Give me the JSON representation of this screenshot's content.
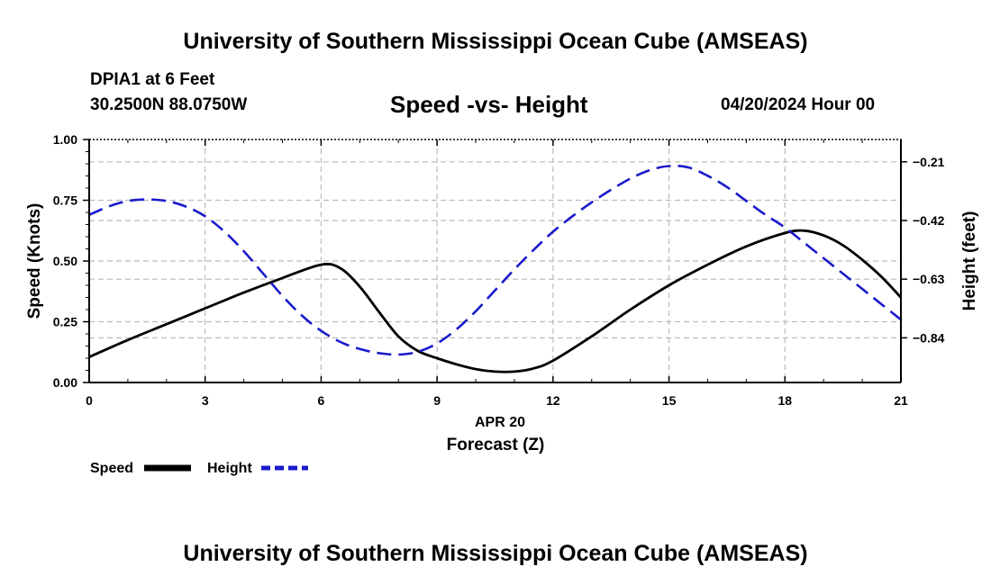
{
  "header": {
    "main_title": "University of Southern Mississippi Ocean Cube (AMSEAS)",
    "station": "DPIA1 at 6 Feet",
    "coords": "30.2500N  88.0750W",
    "chart_title": "Speed -vs- Height",
    "date": "04/20/2024 Hour 00"
  },
  "footer": {
    "title": "University of Southern Mississippi Ocean Cube (AMSEAS)"
  },
  "chart_data": {
    "type": "line",
    "title": "Speed -vs- Height",
    "xlabel_date": "APR 20",
    "xlabel": "Forecast (Z)",
    "ylabel": "Speed (Knots)",
    "y2label": "Height (feet)",
    "xlim": [
      0,
      21
    ],
    "ylim": [
      0,
      1
    ],
    "y2lim": [
      -1.0,
      -0.13
    ],
    "x_ticks": [
      0,
      3,
      6,
      9,
      12,
      15,
      18,
      21
    ],
    "x_tick_labels": [
      "0",
      "3",
      "6",
      "9",
      "12",
      "15",
      "18",
      "21"
    ],
    "y_ticks": [
      0,
      0.25,
      0.5,
      0.75,
      1.0
    ],
    "y_tick_labels": [
      "0.00",
      "0.25",
      "0.50",
      "0.75",
      "1.00"
    ],
    "y2_ticks": [
      -0.21,
      -0.42,
      -0.63,
      -0.84
    ],
    "y2_tick_labels": [
      "−0.21",
      "−0.42",
      "−0.63",
      "−0.84"
    ],
    "grid": true,
    "legend": [
      {
        "name": "Speed",
        "color": "#000000",
        "style": "solid"
      },
      {
        "name": "Height",
        "color": "#1a1acc",
        "style": "dashed"
      }
    ],
    "series": [
      {
        "name": "Speed",
        "axis": "left",
        "color": "#000000",
        "style": "solid",
        "x": [
          0,
          1,
          2,
          3,
          4,
          5,
          6,
          6.5,
          7,
          7.5,
          8,
          8.5,
          9,
          9.5,
          10,
          10.5,
          11,
          11.5,
          12,
          13,
          14,
          15,
          16,
          17,
          18,
          18.5,
          19,
          19.5,
          20,
          20.5,
          21
        ],
        "values": [
          0.105,
          0.175,
          0.24,
          0.305,
          0.37,
          0.43,
          0.485,
          0.47,
          0.395,
          0.29,
          0.19,
          0.13,
          0.1,
          0.075,
          0.055,
          0.045,
          0.045,
          0.058,
          0.09,
          0.19,
          0.3,
          0.4,
          0.485,
          0.56,
          0.615,
          0.625,
          0.605,
          0.565,
          0.505,
          0.435,
          0.35
        ]
      },
      {
        "name": "Height",
        "axis": "right",
        "color": "#1a1acc",
        "style": "dashed",
        "x": [
          0,
          0.5,
          1,
          1.5,
          2,
          2.5,
          3,
          3.5,
          4,
          4.5,
          5,
          5.5,
          6,
          6.5,
          7,
          7.5,
          8,
          8.5,
          9,
          9.5,
          10,
          10.5,
          11,
          11.5,
          12,
          12.5,
          13,
          13.5,
          14,
          14.5,
          15,
          15.5,
          16,
          16.5,
          17,
          17.5,
          18,
          18.5,
          19,
          19.5,
          20,
          20.5,
          21
        ],
        "values": [
          -0.4,
          -0.37,
          -0.35,
          -0.345,
          -0.35,
          -0.37,
          -0.405,
          -0.46,
          -0.53,
          -0.61,
          -0.69,
          -0.76,
          -0.815,
          -0.855,
          -0.88,
          -0.895,
          -0.9,
          -0.89,
          -0.86,
          -0.81,
          -0.745,
          -0.67,
          -0.595,
          -0.525,
          -0.46,
          -0.405,
          -0.355,
          -0.31,
          -0.27,
          -0.24,
          -0.225,
          -0.23,
          -0.26,
          -0.3,
          -0.35,
          -0.4,
          -0.445,
          -0.5,
          -0.555,
          -0.61,
          -0.665,
          -0.72,
          -0.775
        ]
      }
    ]
  }
}
